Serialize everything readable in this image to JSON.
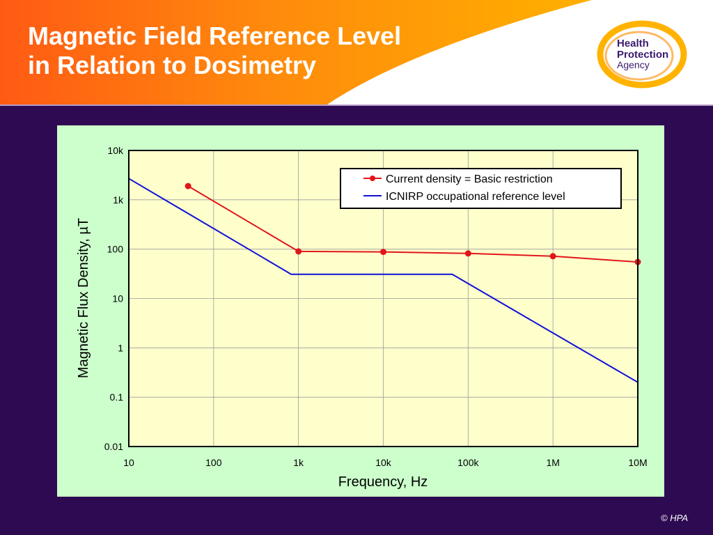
{
  "slide": {
    "title_line1": "Magnetic Field Reference Level",
    "title_line2": "in Relation to Dosimetry",
    "copyright": "© HPA"
  },
  "logo": {
    "line1": "Health",
    "line2": "Protection",
    "line3": "Agency"
  },
  "colors": {
    "background": "#2e0a52",
    "header_orange": "#ff5a14",
    "header_gold": "#ffb000",
    "plot_area": "#ffffcc",
    "chart_panel": "#ccffcc",
    "series_red": "#e0161b",
    "series_blue": "#1010d8"
  },
  "chart_data": {
    "type": "line",
    "title": "",
    "xlabel": "Frequency, Hz",
    "ylabel": "Magnetic Flux Density, µT",
    "xscale": "log",
    "yscale": "log",
    "xlim": [
      10,
      10000000
    ],
    "ylim": [
      0.01,
      10000
    ],
    "x_ticks": [
      {
        "value": 10,
        "label": "10"
      },
      {
        "value": 100,
        "label": "100"
      },
      {
        "value": 1000,
        "label": "1k"
      },
      {
        "value": 10000,
        "label": "10k"
      },
      {
        "value": 100000,
        "label": "100k"
      },
      {
        "value": 1000000,
        "label": "1M"
      },
      {
        "value": 10000000,
        "label": "10M"
      }
    ],
    "y_ticks": [
      {
        "value": 0.01,
        "label": "0.01"
      },
      {
        "value": 0.1,
        "label": "0.1"
      },
      {
        "value": 1,
        "label": "1"
      },
      {
        "value": 10,
        "label": "10"
      },
      {
        "value": 100,
        "label": "100"
      },
      {
        "value": 1000,
        "label": "1k"
      },
      {
        "value": 10000,
        "label": "10k"
      }
    ],
    "grid": true,
    "legend_position": "top-right",
    "series": [
      {
        "name": "Current density = Basic restriction",
        "color": "#e0161b",
        "markers": true,
        "x": [
          50,
          1000,
          10000,
          100000,
          1000000,
          10000000
        ],
        "y": [
          1900,
          90,
          88,
          82,
          72,
          55
        ]
      },
      {
        "name": "ICNIRP occupational reference level",
        "color": "#1010d8",
        "markers": false,
        "x": [
          10,
          820,
          65000,
          1000000,
          10000000
        ],
        "y": [
          2700,
          31,
          31,
          2,
          0.2
        ]
      }
    ]
  }
}
